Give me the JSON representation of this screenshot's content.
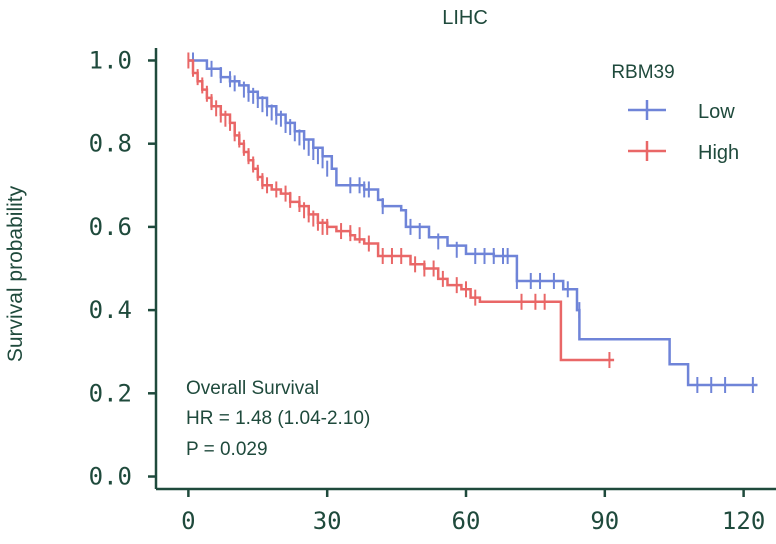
{
  "colors": {
    "axis": "#1f4a3c",
    "text": "#1f4a3c",
    "low": "#6f84d8",
    "high": "#e96767"
  },
  "chart_data": {
    "type": "line",
    "title": "LIHC",
    "xlabel": "",
    "ylabel": "Survival probability",
    "xlim": [
      -7,
      127
    ],
    "ylim": [
      -0.03,
      1.03
    ],
    "xticks": [
      0,
      30,
      60,
      90,
      120
    ],
    "xtick_labels": [
      "0",
      "30",
      "60",
      "90",
      "120"
    ],
    "yticks": [
      0.0,
      0.2,
      0.4,
      0.6,
      0.8,
      1.0
    ],
    "ytick_labels": [
      "0.0",
      "0.2",
      "0.4",
      "0.6",
      "0.8",
      "1.0"
    ],
    "legend": {
      "title": "RBM39",
      "position": "top-right",
      "entries": [
        "Low",
        "High"
      ]
    },
    "annotation": {
      "lines": [
        "Overall Survival",
        "HR = 1.48 (1.04-2.10)",
        "P = 0.029"
      ]
    },
    "series": [
      {
        "name": "Low",
        "color": "#6f84d8",
        "steps": [
          [
            0,
            1.0
          ],
          [
            4,
            0.98
          ],
          [
            7,
            0.96
          ],
          [
            9,
            0.95
          ],
          [
            11,
            0.94
          ],
          [
            13,
            0.925
          ],
          [
            15,
            0.91
          ],
          [
            17,
            0.89
          ],
          [
            19,
            0.87
          ],
          [
            21,
            0.85
          ],
          [
            23,
            0.83
          ],
          [
            25,
            0.81
          ],
          [
            27,
            0.79
          ],
          [
            29,
            0.77
          ],
          [
            31,
            0.74
          ],
          [
            32,
            0.7
          ],
          [
            38,
            0.69
          ],
          [
            41,
            0.665
          ],
          [
            42,
            0.65
          ],
          [
            46,
            0.64
          ],
          [
            47,
            0.6
          ],
          [
            52,
            0.575
          ],
          [
            56,
            0.555
          ],
          [
            60,
            0.535
          ],
          [
            66,
            0.53
          ],
          [
            71,
            0.47
          ],
          [
            81,
            0.45
          ],
          [
            84,
            0.4
          ],
          [
            84.5,
            0.33
          ],
          [
            104,
            0.27
          ],
          [
            108,
            0.22
          ],
          [
            123,
            0.22
          ]
        ],
        "censors": [
          [
            1,
            1.0
          ],
          [
            5,
            0.98
          ],
          [
            7,
            0.965
          ],
          [
            9,
            0.955
          ],
          [
            10,
            0.945
          ],
          [
            12,
            0.93
          ],
          [
            13,
            0.92
          ],
          [
            14,
            0.915
          ],
          [
            15,
            0.905
          ],
          [
            16,
            0.895
          ],
          [
            17,
            0.885
          ],
          [
            18,
            0.875
          ],
          [
            19,
            0.865
          ],
          [
            20,
            0.86
          ],
          [
            21,
            0.845
          ],
          [
            22,
            0.84
          ],
          [
            23,
            0.825
          ],
          [
            24,
            0.815
          ],
          [
            25,
            0.805
          ],
          [
            26,
            0.79
          ],
          [
            27,
            0.78
          ],
          [
            28,
            0.77
          ],
          [
            29,
            0.76
          ],
          [
            30,
            0.74
          ],
          [
            35,
            0.7
          ],
          [
            37,
            0.7
          ],
          [
            38,
            0.69
          ],
          [
            39,
            0.69
          ],
          [
            42,
            0.65
          ],
          [
            48,
            0.6
          ],
          [
            50,
            0.59
          ],
          [
            54,
            0.565
          ],
          [
            58,
            0.545
          ],
          [
            62,
            0.53
          ],
          [
            64,
            0.53
          ],
          [
            66,
            0.53
          ],
          [
            68,
            0.53
          ],
          [
            69,
            0.53
          ],
          [
            71,
            0.47
          ],
          [
            74,
            0.47
          ],
          [
            76,
            0.47
          ],
          [
            79,
            0.47
          ],
          [
            82,
            0.45
          ],
          [
            84.5,
            0.4
          ],
          [
            110,
            0.22
          ],
          [
            113,
            0.22
          ],
          [
            116,
            0.22
          ],
          [
            122,
            0.22
          ]
        ]
      },
      {
        "name": "High",
        "color": "#e96767",
        "steps": [
          [
            0,
            1.0
          ],
          [
            1,
            0.97
          ],
          [
            2,
            0.95
          ],
          [
            3,
            0.93
          ],
          [
            4,
            0.91
          ],
          [
            5,
            0.89
          ],
          [
            7,
            0.87
          ],
          [
            9,
            0.85
          ],
          [
            10,
            0.82
          ],
          [
            11,
            0.8
          ],
          [
            12,
            0.78
          ],
          [
            13,
            0.76
          ],
          [
            14,
            0.74
          ],
          [
            15,
            0.72
          ],
          [
            16,
            0.7
          ],
          [
            18,
            0.69
          ],
          [
            20,
            0.68
          ],
          [
            22,
            0.66
          ],
          [
            24,
            0.65
          ],
          [
            26,
            0.63
          ],
          [
            28,
            0.61
          ],
          [
            30,
            0.6
          ],
          [
            32,
            0.59
          ],
          [
            35,
            0.58
          ],
          [
            36,
            0.57
          ],
          [
            38,
            0.56
          ],
          [
            41,
            0.53
          ],
          [
            48,
            0.51
          ],
          [
            51,
            0.5
          ],
          [
            54,
            0.475
          ],
          [
            56,
            0.46
          ],
          [
            59,
            0.45
          ],
          [
            61,
            0.43
          ],
          [
            63,
            0.42
          ],
          [
            80,
            0.42
          ],
          [
            80.5,
            0.28
          ],
          [
            92,
            0.28
          ]
        ],
        "censors": [
          [
            0,
            1.0
          ],
          [
            1,
            0.98
          ],
          [
            2,
            0.96
          ],
          [
            3,
            0.94
          ],
          [
            4,
            0.92
          ],
          [
            5,
            0.9
          ],
          [
            6,
            0.885
          ],
          [
            7,
            0.87
          ],
          [
            8,
            0.86
          ],
          [
            9,
            0.85
          ],
          [
            10,
            0.825
          ],
          [
            11,
            0.81
          ],
          [
            12,
            0.79
          ],
          [
            13,
            0.77
          ],
          [
            14,
            0.75
          ],
          [
            15,
            0.73
          ],
          [
            16,
            0.71
          ],
          [
            17,
            0.7
          ],
          [
            19,
            0.69
          ],
          [
            21,
            0.68
          ],
          [
            22,
            0.665
          ],
          [
            24,
            0.655
          ],
          [
            25,
            0.64
          ],
          [
            26,
            0.63
          ],
          [
            27,
            0.62
          ],
          [
            28,
            0.61
          ],
          [
            29,
            0.6
          ],
          [
            30,
            0.6
          ],
          [
            33,
            0.59
          ],
          [
            35,
            0.585
          ],
          [
            37,
            0.58
          ],
          [
            39,
            0.56
          ],
          [
            42,
            0.53
          ],
          [
            44,
            0.53
          ],
          [
            46,
            0.53
          ],
          [
            49,
            0.51
          ],
          [
            51,
            0.5
          ],
          [
            53,
            0.5
          ],
          [
            55,
            0.475
          ],
          [
            58,
            0.46
          ],
          [
            60,
            0.45
          ],
          [
            62,
            0.43
          ],
          [
            72,
            0.42
          ],
          [
            75,
            0.42
          ],
          [
            77,
            0.42
          ],
          [
            91,
            0.28
          ]
        ]
      }
    ]
  }
}
